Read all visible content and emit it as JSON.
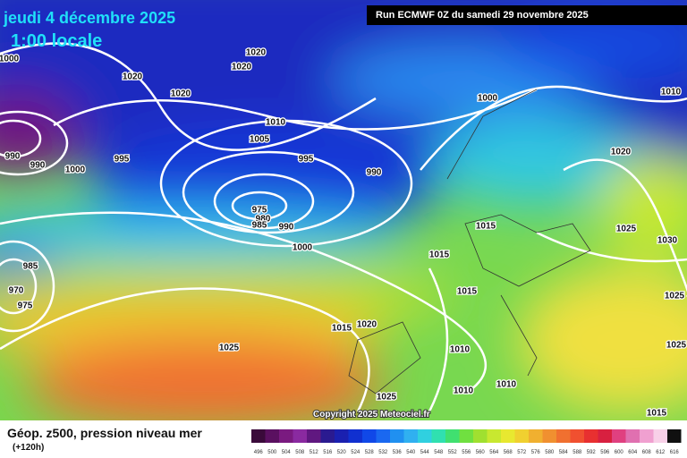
{
  "header": {
    "date": "jeudi 4 décembre 2025",
    "time": "1:00 locale",
    "run": "Run ECMWF 0Z du samedi 29 novembre 2025"
  },
  "copyright": "Copyright 2025 Meteociel.fr",
  "footer": {
    "title": "Géop. z500, pression niveau mer",
    "lead": "(+120h)"
  },
  "legend": {
    "values": [
      496,
      500,
      504,
      508,
      512,
      516,
      520,
      524,
      528,
      532,
      536,
      540,
      544,
      548,
      552,
      556,
      560,
      564,
      568,
      572,
      576,
      580,
      584,
      588,
      592,
      596,
      600,
      604,
      608,
      612,
      616
    ],
    "colors": [
      "#3a0a3a",
      "#5a1060",
      "#7a1a80",
      "#8a2aa0",
      "#601880",
      "#2a1a90",
      "#1a20b0",
      "#1030d0",
      "#1048e8",
      "#1a68f0",
      "#2090f0",
      "#30b0f0",
      "#30d0e0",
      "#30e0b0",
      "#40e070",
      "#70e040",
      "#a0e030",
      "#c8e830",
      "#e8e830",
      "#f0d030",
      "#f0b030",
      "#f09030",
      "#f07030",
      "#f05030",
      "#e83030",
      "#d82040",
      "#e04080",
      "#e070b0",
      "#f0a0d0",
      "#f8d0e8",
      "#101010"
    ]
  },
  "isobars": [
    "1000",
    "1020",
    "1020",
    "1020",
    "1020",
    "990",
    "990",
    "995",
    "1000",
    "1010",
    "1005",
    "995",
    "990",
    "1000",
    "1010",
    "1020",
    "975",
    "980",
    "985",
    "990",
    "1000",
    "1015",
    "1025",
    "1030",
    "1015",
    "1015",
    "1025",
    "1015",
    "1020",
    "1025",
    "1010",
    "1025",
    "1025",
    "1010",
    "1010",
    "1015",
    "985",
    "970",
    "975"
  ]
}
